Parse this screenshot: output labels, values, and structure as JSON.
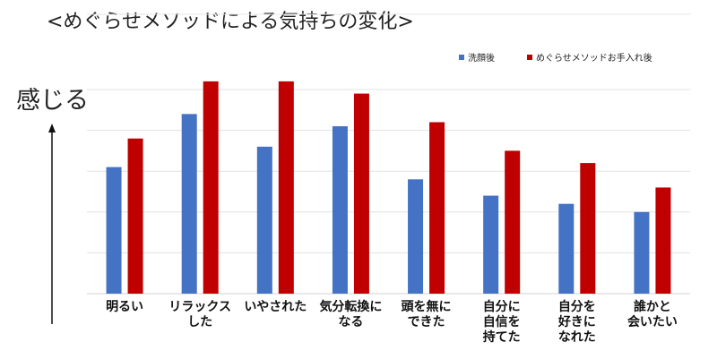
{
  "chart_data": {
    "type": "bar",
    "title": "<めぐらせメソッドによる気持ちの変化>",
    "ylabel": "感じる",
    "xlabel": "",
    "ylim": [
      0,
      5
    ],
    "grid": true,
    "legend_position": "top-right",
    "categories": [
      [
        "明るい"
      ],
      [
        "リラックス",
        "した"
      ],
      [
        "いやされた"
      ],
      [
        "気分転換に",
        "なる"
      ],
      [
        "頭を無に",
        "できた"
      ],
      [
        "自分に",
        "自信を",
        "持てた"
      ],
      [
        "自分を",
        "好きに",
        "なれた"
      ],
      [
        "誰かと",
        "会いたい"
      ]
    ],
    "series": [
      {
        "name": "洗顔後",
        "color": "#4472C4",
        "values": [
          3.1,
          4.4,
          3.6,
          4.1,
          2.8,
          2.4,
          2.2,
          2.0
        ]
      },
      {
        "name": "めぐらせメソッドお手入れ後",
        "color": "#C00000",
        "values": [
          3.8,
          5.2,
          5.2,
          4.9,
          4.2,
          3.5,
          3.2,
          2.6
        ]
      }
    ]
  }
}
